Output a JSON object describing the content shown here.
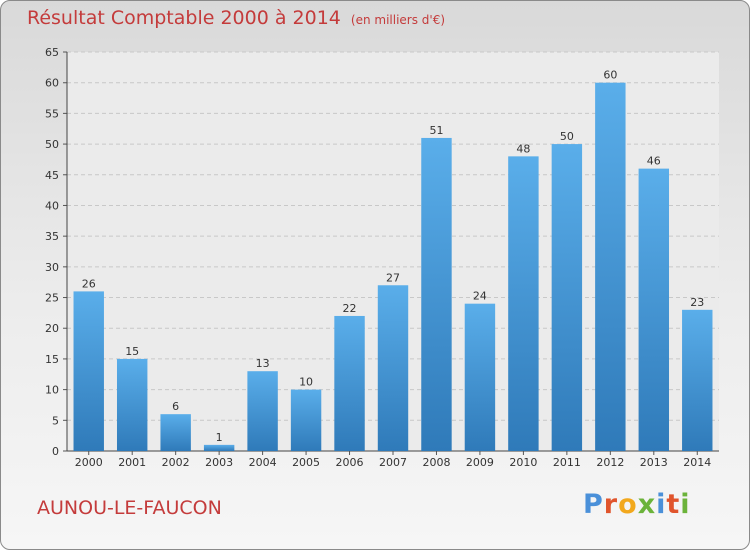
{
  "title": "Résultat Comptable 2000 à 2014",
  "unit": "(en milliers d'€)",
  "commune": "AUNOU-LE-FAUCON",
  "logo": {
    "text": "Proxiti",
    "letters": [
      {
        "ch": "P",
        "color": "#4a90d9"
      },
      {
        "ch": "r",
        "color": "#e0542c"
      },
      {
        "ch": "o",
        "color": "#f2a81d"
      },
      {
        "ch": "x",
        "color": "#6bb33a"
      },
      {
        "ch": "i",
        "color": "#4a90d9"
      },
      {
        "ch": "t",
        "color": "#e0542c"
      },
      {
        "ch": "i",
        "color": "#6bb33a"
      }
    ]
  },
  "colors": {
    "bar_top": "#5aaeea",
    "bar_bottom": "#2f7ab9",
    "title": "#c43b3b",
    "grid": "#c8c8c8"
  },
  "chart_data": {
    "type": "bar",
    "categories": [
      "2000",
      "2001",
      "2002",
      "2003",
      "2004",
      "2005",
      "2006",
      "2007",
      "2008",
      "2009",
      "2010",
      "2011",
      "2012",
      "2013",
      "2014"
    ],
    "values": [
      26,
      15,
      6,
      1,
      13,
      10,
      22,
      27,
      51,
      24,
      48,
      50,
      60,
      46,
      23
    ],
    "ylim": [
      0,
      65
    ],
    "yticks": [
      0,
      5,
      10,
      15,
      20,
      25,
      30,
      35,
      40,
      45,
      50,
      55,
      60,
      65
    ],
    "grid": true
  }
}
